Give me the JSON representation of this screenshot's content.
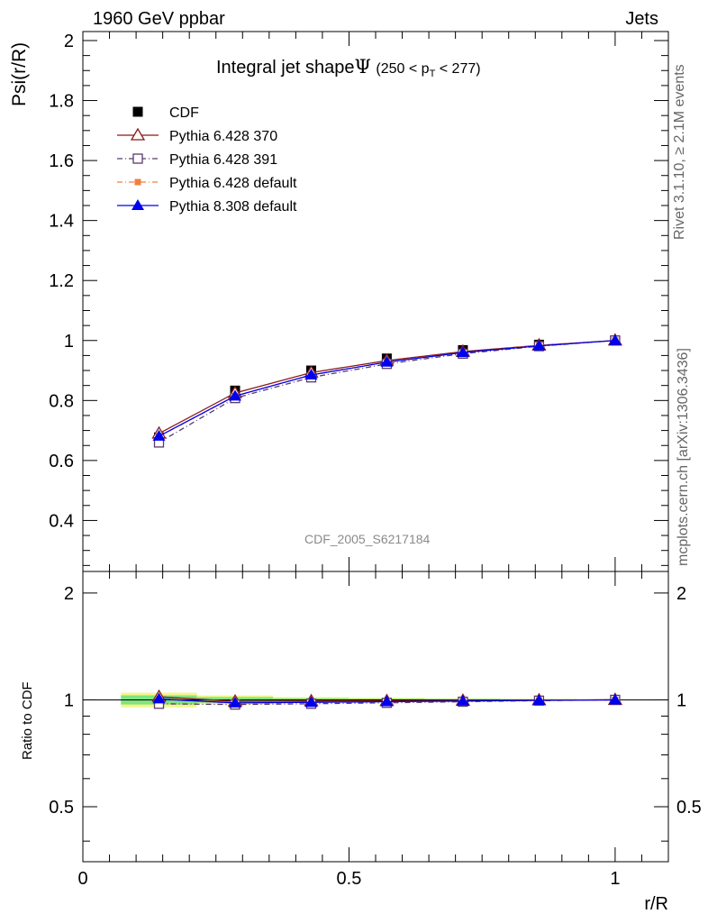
{
  "header": {
    "left": "1960 GeV ppbar",
    "right": "Jets"
  },
  "side_labels": {
    "rivet": "Rivet 3.1.10, ≥ 2.1M events",
    "mcplots": "mcplots.cern.ch [arXiv:1306.3436]"
  },
  "chart_data": {
    "type": "line",
    "title_prefix": "Integral jet shape",
    "title_symbol": "Ψ",
    "title_range_open": "(250 < p",
    "title_range_sub": "T",
    "title_range_close": " < 277)",
    "analysis_label": "CDF_2005_S6217184",
    "xlabel": "r/R",
    "ylabel": "Psi(r/R)",
    "ratio_ylabel": "Ratio to CDF",
    "xlim": [
      0,
      1.1
    ],
    "ylim": [
      0.23,
      2.03
    ],
    "ratio_ylim": [
      0.35,
      2.3
    ],
    "x_ticks": [
      "0",
      "0.5",
      "1"
    ],
    "y_ticks": [
      "0.4",
      "0.6",
      "0.8",
      "1",
      "1.2",
      "1.4",
      "1.6",
      "1.8",
      "2"
    ],
    "ratio_ticks": [
      "0.5",
      "1",
      "2"
    ],
    "x": [
      0.143,
      0.286,
      0.429,
      0.571,
      0.714,
      0.857,
      1.0
    ],
    "data": {
      "name": "CDF",
      "values": [
        0.677,
        0.833,
        0.9,
        0.94,
        0.968,
        0.986,
        1.0
      ],
      "errors": [
        0.02,
        0.015,
        0.01,
        0.008,
        0.006,
        0.004,
        0.0
      ]
    },
    "series": [
      {
        "name": "Pythia 6.428 370",
        "color": "#8b1a1a",
        "values": [
          0.69,
          0.825,
          0.893,
          0.933,
          0.963,
          0.984,
          1.0
        ],
        "ratio": [
          1.02,
          0.99,
          0.992,
          0.993,
          0.995,
          0.998,
          1.0
        ]
      },
      {
        "name": "Pythia 6.428 391",
        "color": "#5a3a6a",
        "values": [
          0.66,
          0.808,
          0.877,
          0.922,
          0.956,
          0.981,
          1.0
        ],
        "ratio": [
          0.975,
          0.97,
          0.975,
          0.981,
          0.988,
          0.995,
          1.0
        ]
      },
      {
        "name": "Pythia 6.428 default",
        "color": "#f08040",
        "values": [
          0.68,
          0.815,
          0.885,
          0.928,
          0.96,
          0.983,
          1.0
        ],
        "ratio": [
          1.004,
          0.978,
          0.983,
          0.987,
          0.992,
          0.997,
          1.0
        ]
      },
      {
        "name": "Pythia 8.308 default",
        "color": "#0000ee",
        "values": [
          0.681,
          0.815,
          0.885,
          0.928,
          0.96,
          0.982,
          1.0
        ],
        "ratio": [
          1.006,
          0.98,
          0.984,
          0.988,
          0.992,
          0.997,
          1.0
        ]
      }
    ],
    "band_colors": {
      "outer": "#f5f58a",
      "inner": "#7fe37f"
    }
  }
}
